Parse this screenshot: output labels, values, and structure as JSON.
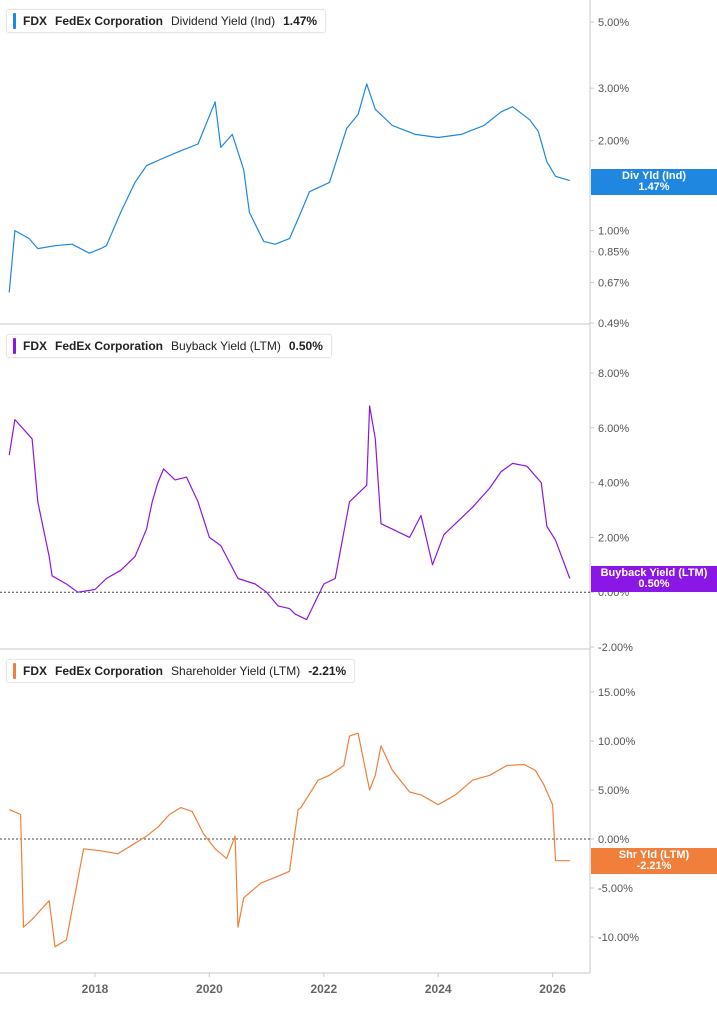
{
  "panels": [
    {
      "ticker": "FDX",
      "company": "FedEx Corporation",
      "metric": "Dividend Yield (Ind)",
      "value": "1.47%",
      "color": "#1f87e0",
      "tag_label": "Div Yld (Ind)",
      "tag_value": "1.47%",
      "scale": "log",
      "ticks": [
        "5.00%",
        "3.00%",
        "2.00%",
        "1.00%",
        "0.85%",
        "0.67%",
        "0.49%"
      ],
      "tick_values": [
        5.0,
        3.0,
        2.0,
        1.0,
        0.85,
        0.67,
        0.49
      ]
    },
    {
      "ticker": "FDX",
      "company": "FedEx Corporation",
      "metric": "Buyback Yield (LTM)",
      "value": "0.50%",
      "color": "#8a17e6",
      "tag_label": "Buyback Yield (LTM)",
      "tag_value": "0.50%",
      "scale": "linear",
      "ticks": [
        "8.00%",
        "6.00%",
        "4.00%",
        "2.00%",
        "0.00%",
        "-2.00%"
      ],
      "tick_values": [
        8,
        6,
        4,
        2,
        0,
        -2
      ]
    },
    {
      "ticker": "FDX",
      "company": "FedEx Corporation",
      "metric": "Shareholder Yield (LTM)",
      "value": "-2.21%",
      "color": "#f07f3c",
      "tag_label": "Shr Yld (LTM)",
      "tag_value": "-2.21%",
      "scale": "linear",
      "ticks": [
        "15.00%",
        "10.00%",
        "5.00%",
        "0.00%",
        "-5.00%",
        "-10.00%"
      ],
      "tick_values": [
        15,
        10,
        5,
        0,
        -5,
        -10
      ]
    }
  ],
  "x_axis": {
    "labels": [
      "2018",
      "2020",
      "2022",
      "2024",
      "2026"
    ]
  },
  "chart_data": [
    {
      "type": "line",
      "title": "FDX FedEx Corporation Dividend Yield (Ind)",
      "y_scale": "log",
      "ylim": [
        0.49,
        5.5
      ],
      "grid": false,
      "series": [
        {
          "name": "Dividend Yield (Ind)",
          "x": [
            2016.5,
            2016.6,
            2016.85,
            2017.0,
            2017.3,
            2017.6,
            2017.9,
            2018.1,
            2018.2,
            2018.45,
            2018.7,
            2018.9,
            2019.2,
            2019.5,
            2019.8,
            2020.1,
            2020.2,
            2020.4,
            2020.6,
            2020.7,
            2020.95,
            2021.15,
            2021.4,
            2021.6,
            2021.75,
            2022.1,
            2022.4,
            2022.6,
            2022.75,
            2022.9,
            2023.2,
            2023.6,
            2024.0,
            2024.4,
            2024.8,
            2025.1,
            2025.3,
            2025.6,
            2025.75,
            2025.9,
            2026.05,
            2026.3
          ],
          "y": [
            0.62,
            1.0,
            0.94,
            0.87,
            0.89,
            0.9,
            0.84,
            0.87,
            0.89,
            1.15,
            1.45,
            1.65,
            1.75,
            1.85,
            1.95,
            2.7,
            1.9,
            2.1,
            1.6,
            1.15,
            0.92,
            0.9,
            0.94,
            1.15,
            1.35,
            1.45,
            2.2,
            2.45,
            3.1,
            2.55,
            2.25,
            2.1,
            2.05,
            2.1,
            2.25,
            2.5,
            2.6,
            2.35,
            2.15,
            1.7,
            1.52,
            1.47
          ]
        }
      ]
    },
    {
      "type": "line",
      "title": "FDX FedEx Corporation Buyback Yield (LTM)",
      "ylim": [
        -2,
        8
      ],
      "grid": false,
      "series": [
        {
          "name": "Buyback Yield (LTM)",
          "x": [
            2016.5,
            2016.6,
            2016.9,
            2017.0,
            2017.1,
            2017.2,
            2017.25,
            2017.5,
            2017.7,
            2018.0,
            2018.2,
            2018.45,
            2018.7,
            2018.9,
            2019.0,
            2019.1,
            2019.2,
            2019.4,
            2019.6,
            2019.8,
            2020.0,
            2020.2,
            2020.5,
            2020.8,
            2021.0,
            2021.2,
            2021.4,
            2021.5,
            2021.7,
            2022.0,
            2022.2,
            2022.45,
            2022.6,
            2022.75,
            2022.8,
            2022.9,
            2023.0,
            2023.3,
            2023.5,
            2023.7,
            2023.9,
            2024.1,
            2024.3,
            2024.6,
            2024.9,
            2025.1,
            2025.3,
            2025.55,
            2025.8,
            2025.9,
            2026.05,
            2026.3
          ],
          "y": [
            5.0,
            6.3,
            5.6,
            3.3,
            2.3,
            1.3,
            0.6,
            0.3,
            0.0,
            0.1,
            0.5,
            0.8,
            1.3,
            2.3,
            3.3,
            4.0,
            4.5,
            4.1,
            4.2,
            3.3,
            2.0,
            1.7,
            0.5,
            0.3,
            0.0,
            -0.5,
            -0.6,
            -0.8,
            -1.0,
            0.3,
            0.5,
            3.3,
            3.6,
            3.9,
            6.8,
            5.6,
            2.5,
            2.2,
            2.0,
            2.8,
            1.0,
            2.1,
            2.5,
            3.1,
            3.8,
            4.4,
            4.7,
            4.6,
            4.0,
            2.4,
            1.9,
            0.5
          ]
        }
      ]
    },
    {
      "type": "line",
      "title": "FDX FedEx Corporation Shareholder Yield (LTM)",
      "ylim": [
        -14,
        17
      ],
      "grid": false,
      "series": [
        {
          "name": "Shareholder Yield (LTM)",
          "x": [
            2016.5,
            2016.7,
            2016.75,
            2016.9,
            2017.2,
            2017.3,
            2017.5,
            2017.8,
            2018.1,
            2018.4,
            2018.6,
            2018.9,
            2019.1,
            2019.3,
            2019.5,
            2019.7,
            2019.9,
            2020.1,
            2020.3,
            2020.45,
            2020.5,
            2020.6,
            2020.9,
            2021.2,
            2021.4,
            2021.55,
            2021.6,
            2021.9,
            2022.1,
            2022.35,
            2022.45,
            2022.6,
            2022.8,
            2022.9,
            2023.0,
            2023.2,
            2023.5,
            2023.7,
            2024.0,
            2024.3,
            2024.6,
            2024.9,
            2025.2,
            2025.5,
            2025.7,
            2025.85,
            2026.0,
            2026.05,
            2026.3
          ],
          "y": [
            3.0,
            2.5,
            -9.0,
            -8.2,
            -6.3,
            -11.0,
            -10.3,
            -1.0,
            -1.2,
            -1.5,
            -0.8,
            0.3,
            1.2,
            2.5,
            3.2,
            2.8,
            0.5,
            -1.0,
            -2.0,
            0.3,
            -9.0,
            -6.0,
            -4.5,
            -3.8,
            -3.3,
            3.0,
            3.2,
            6.0,
            6.5,
            7.5,
            10.5,
            10.8,
            5.0,
            6.5,
            9.5,
            7.0,
            4.8,
            4.5,
            3.5,
            4.5,
            6.0,
            6.5,
            7.5,
            7.6,
            7.0,
            5.5,
            3.5,
            -2.2,
            -2.21
          ]
        }
      ]
    }
  ]
}
